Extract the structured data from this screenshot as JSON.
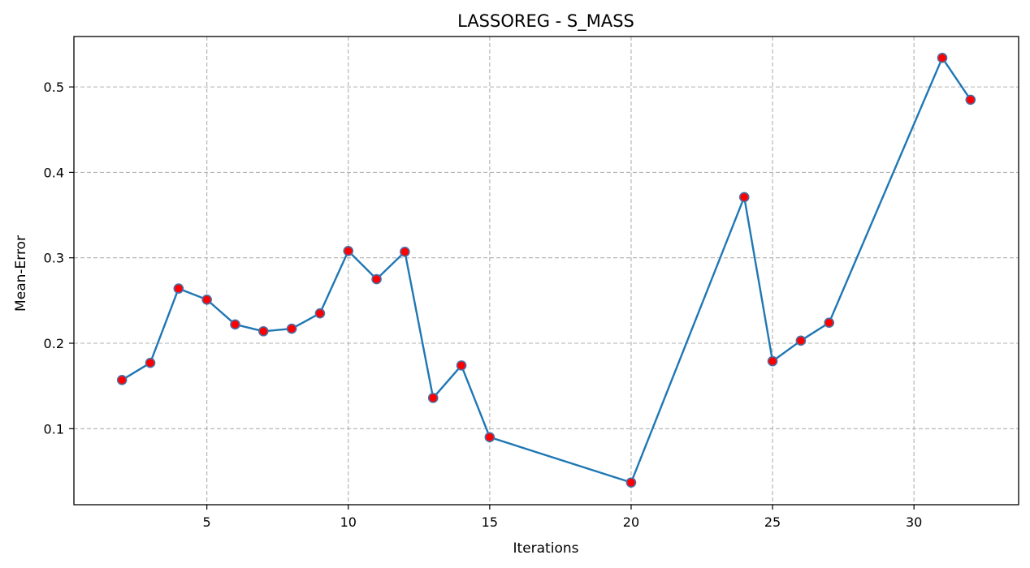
{
  "chart_data": {
    "type": "line",
    "title": "LASSOREG - S_MASS",
    "xlabel": "Iterations",
    "ylabel": "Mean-Error",
    "xlim": [
      0.3,
      33.7
    ],
    "ylim": [
      0.011,
      0.559
    ],
    "xticks": [
      5,
      10,
      15,
      20,
      25,
      30
    ],
    "yticks": [
      0.1,
      0.2,
      0.3,
      0.4,
      0.5
    ],
    "grid": true,
    "series": [
      {
        "x": [
          2,
          3,
          4,
          5,
          6,
          7,
          8,
          9,
          10,
          11,
          12,
          13,
          14,
          15,
          20,
          24,
          25,
          26,
          27,
          31,
          32
        ],
        "values": [
          0.157,
          0.177,
          0.264,
          0.251,
          0.222,
          0.214,
          0.217,
          0.235,
          0.308,
          0.275,
          0.307,
          0.136,
          0.174,
          0.09,
          0.037,
          0.371,
          0.179,
          0.203,
          0.224,
          0.534,
          0.485
        ],
        "line_color": "#1f77b4",
        "marker_color": "#ff0000",
        "marker_edge_color": "#4a6fa5"
      }
    ]
  }
}
